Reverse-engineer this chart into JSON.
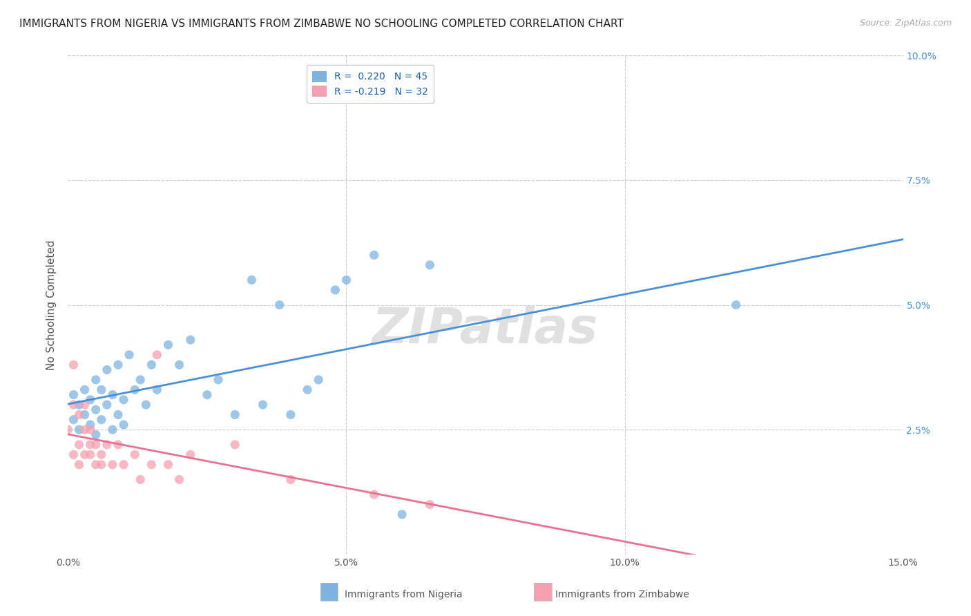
{
  "title": "IMMIGRANTS FROM NIGERIA VS IMMIGRANTS FROM ZIMBABWE NO SCHOOLING COMPLETED CORRELATION CHART",
  "source": "Source: ZipAtlas.com",
  "ylabel": "No Schooling Completed",
  "xlim": [
    0.0,
    0.15
  ],
  "ylim": [
    0.0,
    0.1
  ],
  "xticks": [
    0.0,
    0.05,
    0.1,
    0.15
  ],
  "xtick_labels": [
    "0.0%",
    "5.0%",
    "10.0%",
    "15.0%"
  ],
  "yticks": [
    0.0,
    0.025,
    0.05,
    0.075,
    0.1
  ],
  "ytick_labels_left": [
    "",
    "",
    "",
    "",
    ""
  ],
  "ytick_labels_right": [
    "",
    "2.5%",
    "5.0%",
    "7.5%",
    "10.0%"
  ],
  "nigeria_R": 0.22,
  "nigeria_N": 45,
  "zimbabwe_R": -0.219,
  "zimbabwe_N": 32,
  "nigeria_color": "#7eb3e0",
  "zimbabwe_color": "#f4a0b0",
  "nigeria_line_color": "#4a90d9",
  "zimbabwe_line_color": "#e87090",
  "watermark": "ZIPatlas",
  "legend_labels": [
    "Immigrants from Nigeria",
    "Immigrants from Zimbabwe"
  ],
  "nigeria_x": [
    0.001,
    0.001,
    0.002,
    0.002,
    0.003,
    0.003,
    0.004,
    0.004,
    0.005,
    0.005,
    0.005,
    0.006,
    0.006,
    0.007,
    0.007,
    0.008,
    0.008,
    0.009,
    0.009,
    0.01,
    0.01,
    0.011,
    0.012,
    0.013,
    0.014,
    0.015,
    0.016,
    0.018,
    0.02,
    0.022,
    0.025,
    0.027,
    0.03,
    0.033,
    0.035,
    0.038,
    0.04,
    0.043,
    0.045,
    0.048,
    0.05,
    0.055,
    0.06,
    0.065,
    0.12
  ],
  "nigeria_y": [
    0.027,
    0.032,
    0.025,
    0.03,
    0.028,
    0.033,
    0.026,
    0.031,
    0.024,
    0.029,
    0.035,
    0.027,
    0.033,
    0.03,
    0.037,
    0.025,
    0.032,
    0.028,
    0.038,
    0.026,
    0.031,
    0.04,
    0.033,
    0.035,
    0.03,
    0.038,
    0.033,
    0.042,
    0.038,
    0.043,
    0.032,
    0.035,
    0.028,
    0.055,
    0.03,
    0.05,
    0.028,
    0.033,
    0.035,
    0.053,
    0.055,
    0.06,
    0.008,
    0.058,
    0.05
  ],
  "zimbabwe_x": [
    0.0,
    0.001,
    0.001,
    0.001,
    0.002,
    0.002,
    0.002,
    0.003,
    0.003,
    0.003,
    0.004,
    0.004,
    0.004,
    0.005,
    0.005,
    0.006,
    0.006,
    0.007,
    0.008,
    0.009,
    0.01,
    0.012,
    0.013,
    0.015,
    0.016,
    0.018,
    0.02,
    0.022,
    0.03,
    0.04,
    0.055,
    0.065
  ],
  "zimbabwe_y": [
    0.025,
    0.03,
    0.02,
    0.038,
    0.022,
    0.028,
    0.018,
    0.025,
    0.02,
    0.03,
    0.022,
    0.025,
    0.02,
    0.018,
    0.022,
    0.02,
    0.018,
    0.022,
    0.018,
    0.022,
    0.018,
    0.02,
    0.015,
    0.018,
    0.04,
    0.018,
    0.015,
    0.02,
    0.022,
    0.015,
    0.012,
    0.01
  ],
  "background_color": "#ffffff",
  "grid_color": "#cccccc",
  "title_fontsize": 11,
  "axis_label_fontsize": 11,
  "tick_fontsize": 10,
  "legend_fontsize": 10
}
